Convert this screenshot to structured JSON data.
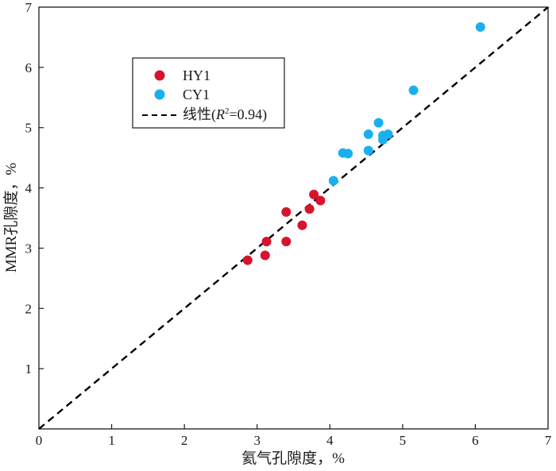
{
  "chart_data": {
    "type": "scatter",
    "xlabel": "氦气孔隙度，%",
    "ylabel": "MMR孔隙度，%",
    "xlim": [
      0,
      7
    ],
    "ylim": [
      0,
      7
    ],
    "xticks": [
      0,
      1,
      2,
      3,
      4,
      5,
      6,
      7
    ],
    "yticks": [
      1,
      2,
      3,
      4,
      5,
      6,
      7
    ],
    "grid": false,
    "legend_position": "top-left",
    "series": [
      {
        "name": "HY1",
        "color": "#d6142d",
        "points": [
          [
            2.87,
            2.8
          ],
          [
            3.11,
            2.88
          ],
          [
            3.13,
            3.11
          ],
          [
            3.4,
            3.11
          ],
          [
            3.4,
            3.6
          ],
          [
            3.62,
            3.38
          ],
          [
            3.72,
            3.65
          ],
          [
            3.78,
            3.89
          ],
          [
            3.87,
            3.79
          ]
        ]
      },
      {
        "name": "CY1",
        "color": "#1ab0ee",
        "points": [
          [
            4.05,
            4.12
          ],
          [
            4.18,
            4.58
          ],
          [
            4.25,
            4.57
          ],
          [
            4.53,
            4.62
          ],
          [
            4.53,
            4.89
          ],
          [
            4.67,
            5.08
          ],
          [
            4.73,
            4.8
          ],
          [
            4.73,
            4.87
          ],
          [
            4.8,
            4.89
          ],
          [
            5.15,
            5.62
          ],
          [
            6.07,
            6.67
          ]
        ]
      }
    ],
    "fit_line": {
      "label": "线性(R²=0.94)",
      "label_prefix": "线性(",
      "label_R": "R",
      "label_sup": "2",
      "label_suffix": "=0.94)",
      "r_squared": 0.94,
      "x": [
        0,
        7
      ],
      "y": [
        0,
        7
      ],
      "color": "#000000"
    }
  }
}
